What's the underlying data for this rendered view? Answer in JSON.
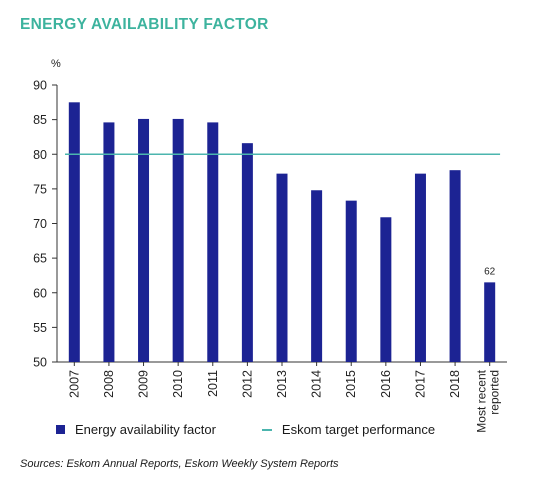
{
  "title": "ENERGY AVAILABILITY FACTOR",
  "colors": {
    "title": "#3db39e",
    "bar": "#1c2393",
    "target": "#4bb5ae",
    "axis": "#333333"
  },
  "chart_data": {
    "type": "bar",
    "ylabel": "%",
    "ylim": [
      50,
      90
    ],
    "yticks": [
      50,
      55,
      60,
      65,
      70,
      75,
      80,
      85,
      90
    ],
    "grid": false,
    "categories": [
      "2007",
      "2008",
      "2009",
      "2010",
      "2011",
      "2012",
      "2013",
      "2014",
      "2015",
      "2016",
      "2017",
      "2018",
      "Most recent reported"
    ],
    "series": [
      {
        "name": "Energy availability factor",
        "values": [
          87.5,
          84.6,
          85.1,
          85.1,
          84.6,
          81.6,
          77.2,
          74.8,
          73.3,
          70.9,
          77.2,
          77.7,
          61.5
        ]
      }
    ],
    "target": {
      "name": "Eskom target performance",
      "value": 80
    },
    "data_labels": [
      {
        "category": "Most recent reported",
        "text": "62"
      }
    ],
    "legend_position": "bottom-left"
  },
  "source": "Sources: Eskom Annual Reports, Eskom Weekly System Reports"
}
